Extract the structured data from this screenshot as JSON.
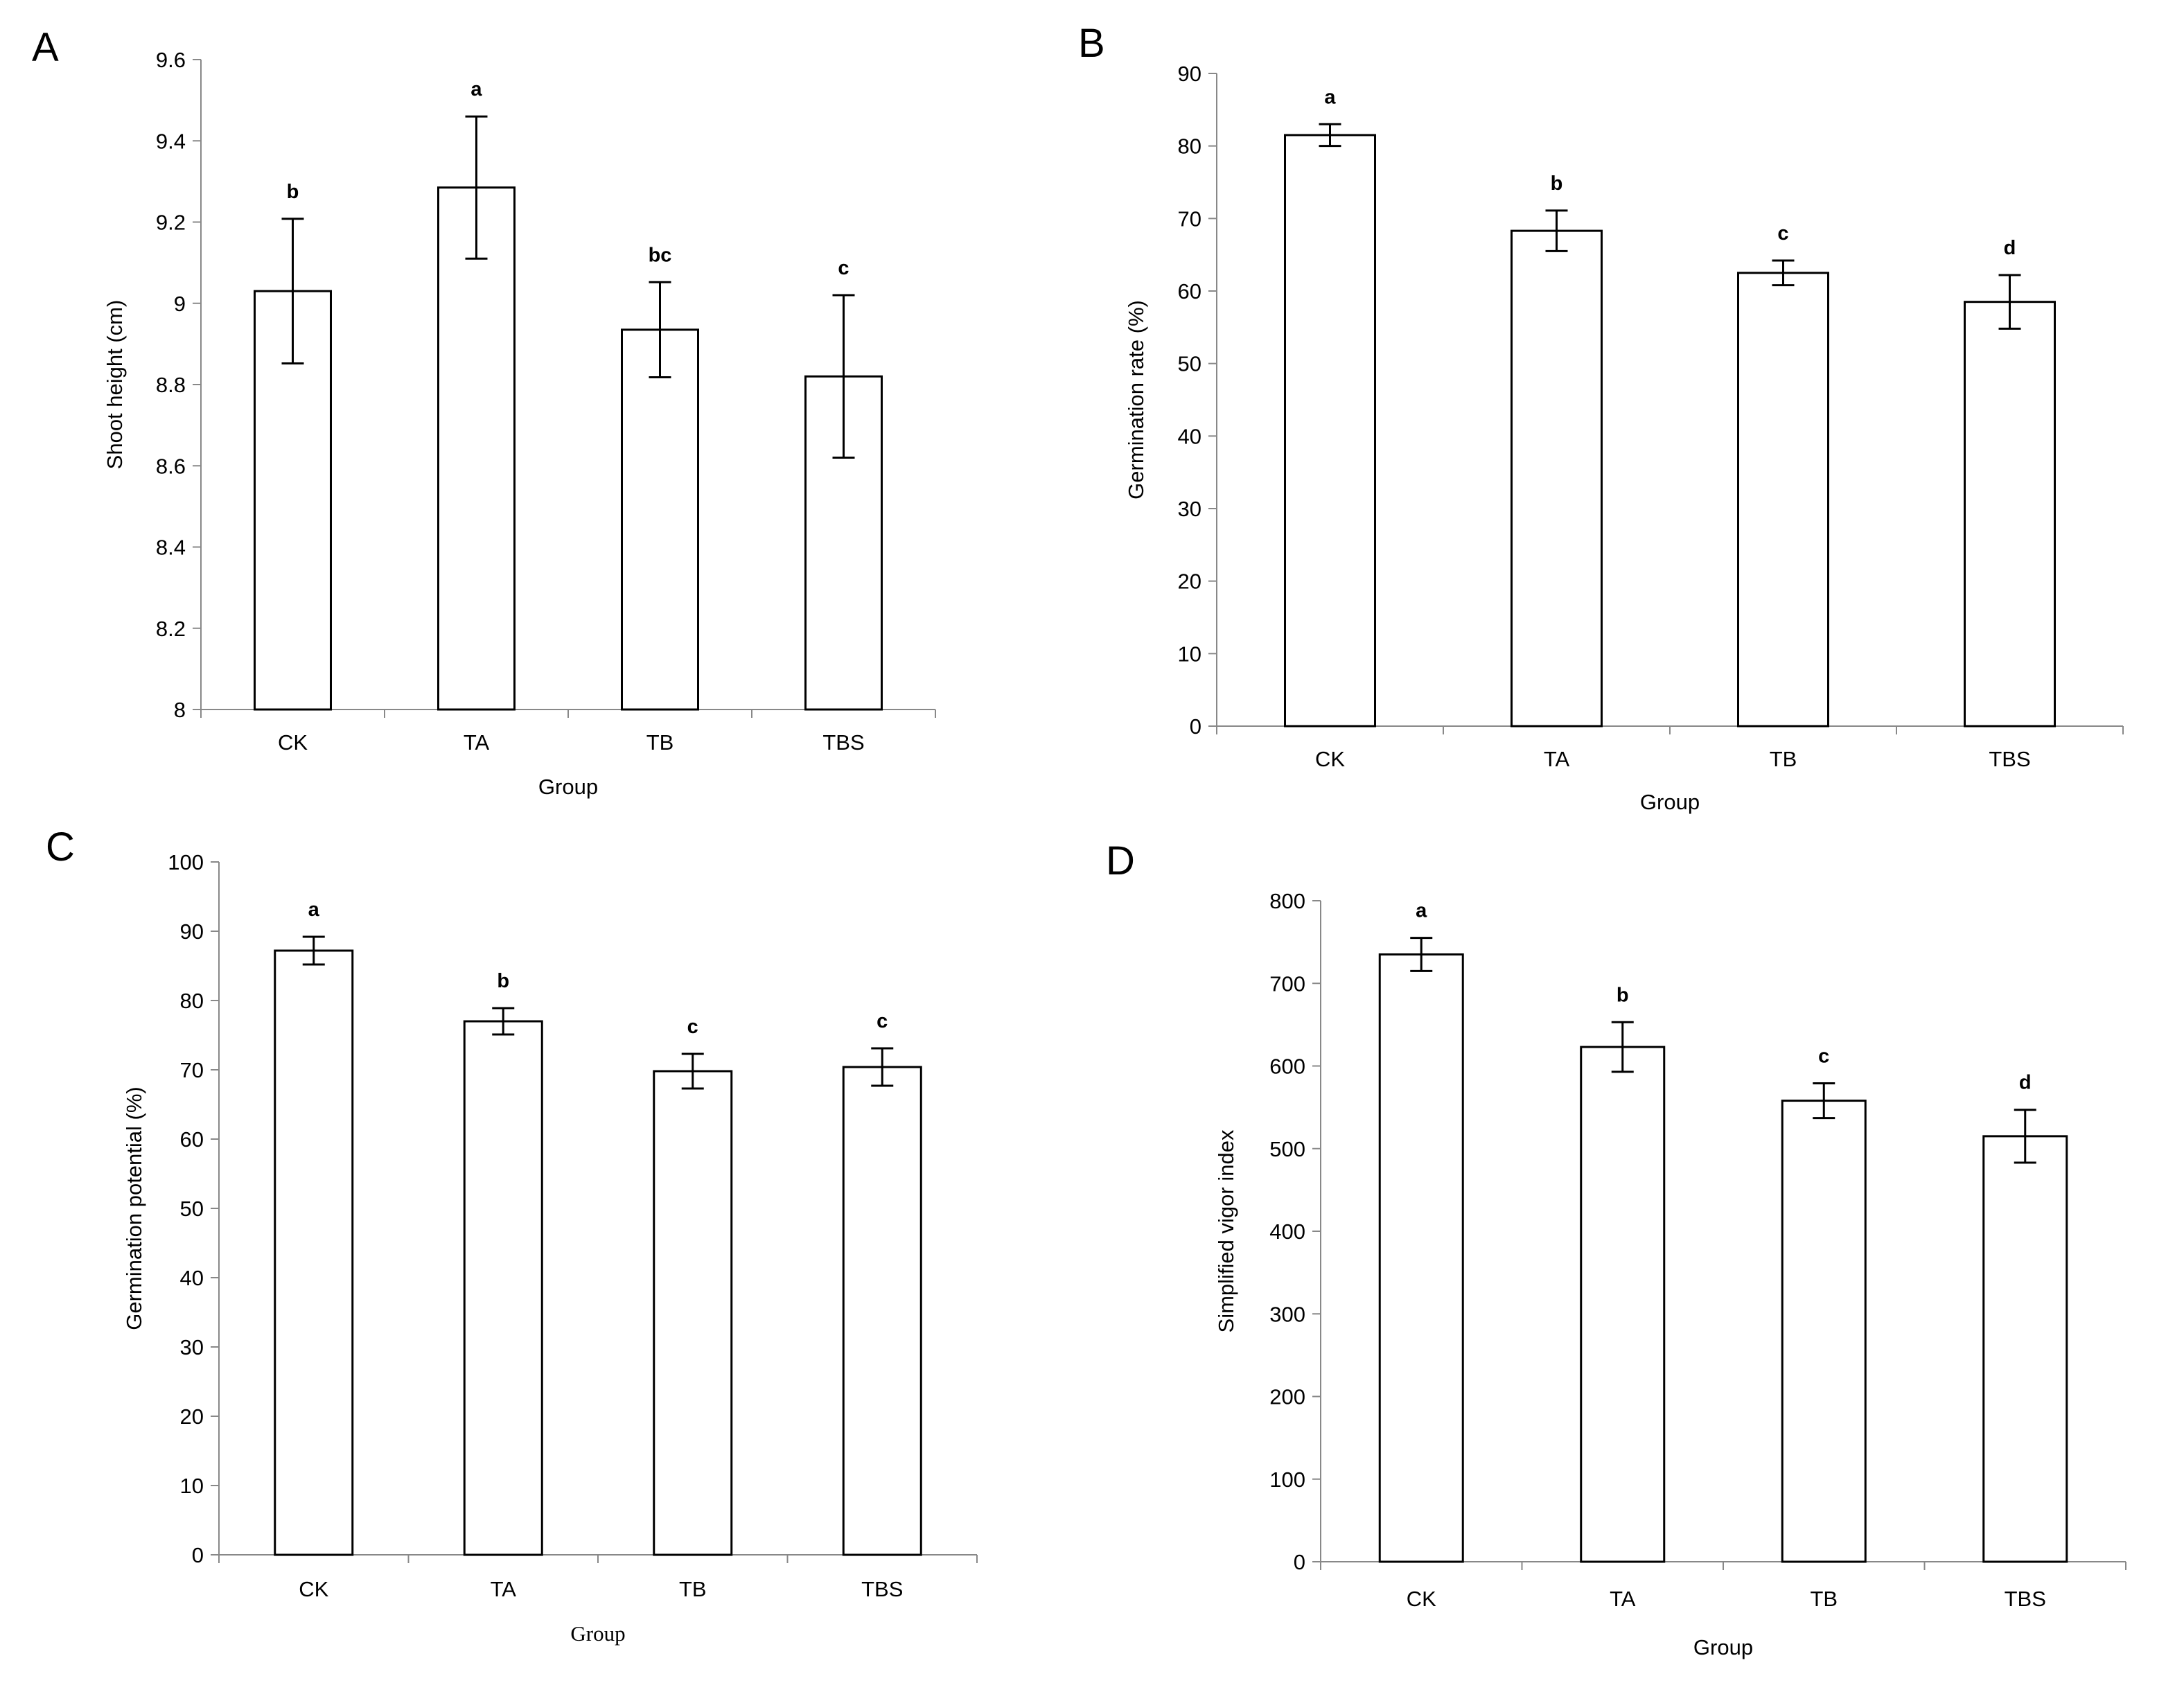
{
  "figure": {
    "panels": [
      "A",
      "B",
      "C",
      "D"
    ]
  },
  "chart_data": [
    {
      "panel": "A",
      "type": "bar",
      "title": "",
      "xlabel": "Group",
      "ylabel": "Shoot height (cm)",
      "categories": [
        "CK",
        "TA",
        "TB",
        "TBS"
      ],
      "values": [
        9.03,
        9.285,
        8.935,
        8.82
      ],
      "errors": [
        0.178,
        0.175,
        0.117,
        0.2
      ],
      "significance": [
        "b",
        "a",
        "bc",
        "c"
      ],
      "ylim": [
        8,
        9.6
      ],
      "yticks": [
        8,
        8.2,
        8.4,
        8.6,
        8.8,
        9,
        9.2,
        9.4,
        9.6
      ],
      "ytick_labels": [
        "8",
        "8.2",
        "8.4",
        "8.6",
        "8.8",
        "9",
        "9.2",
        "9.4",
        "9.6"
      ],
      "grid": false
    },
    {
      "panel": "B",
      "type": "bar",
      "title": "",
      "xlabel": "Group",
      "ylabel": "Germination rate (%)",
      "categories": [
        "CK",
        "TA",
        "TB",
        "TBS"
      ],
      "values": [
        81.5,
        68.3,
        62.5,
        58.5
      ],
      "errors": [
        1.5,
        2.8,
        1.7,
        3.7
      ],
      "significance": [
        "a",
        "b",
        "c",
        "d"
      ],
      "ylim": [
        0,
        90
      ],
      "yticks": [
        0,
        10,
        20,
        30,
        40,
        50,
        60,
        70,
        80,
        90
      ],
      "ytick_labels": [
        "0",
        "10",
        "20",
        "30",
        "40",
        "50",
        "60",
        "70",
        "80",
        "90"
      ],
      "grid": false
    },
    {
      "panel": "C",
      "type": "bar",
      "title": "",
      "xlabel": "Group",
      "ylabel": "Germination potential (%)",
      "categories": [
        "CK",
        "TA",
        "TB",
        "TBS"
      ],
      "values": [
        87.2,
        77.0,
        69.8,
        70.4
      ],
      "errors": [
        2.0,
        1.9,
        2.5,
        2.7
      ],
      "significance": [
        "a",
        "b",
        "c",
        "c"
      ],
      "ylim": [
        0,
        100
      ],
      "yticks": [
        0,
        10,
        20,
        30,
        40,
        50,
        60,
        70,
        80,
        90,
        100
      ],
      "ytick_labels": [
        "0",
        "10",
        "20",
        "30",
        "40",
        "50",
        "60",
        "70",
        "80",
        "90",
        "100"
      ],
      "grid": false
    },
    {
      "panel": "D",
      "type": "bar",
      "title": "",
      "xlabel": "Group",
      "ylabel": "Simplified vigor index",
      "categories": [
        "CK",
        "TA",
        "TB",
        "TBS"
      ],
      "values": [
        735,
        623,
        558,
        515
      ],
      "errors": [
        20,
        30,
        21,
        32
      ],
      "significance": [
        "a",
        "b",
        "c",
        "d"
      ],
      "ylim": [
        0,
        800
      ],
      "yticks": [
        0,
        100,
        200,
        300,
        400,
        500,
        600,
        700,
        800
      ],
      "ytick_labels": [
        "0",
        "100",
        "200",
        "300",
        "400",
        "500",
        "600",
        "700",
        "800"
      ],
      "grid": false
    }
  ]
}
